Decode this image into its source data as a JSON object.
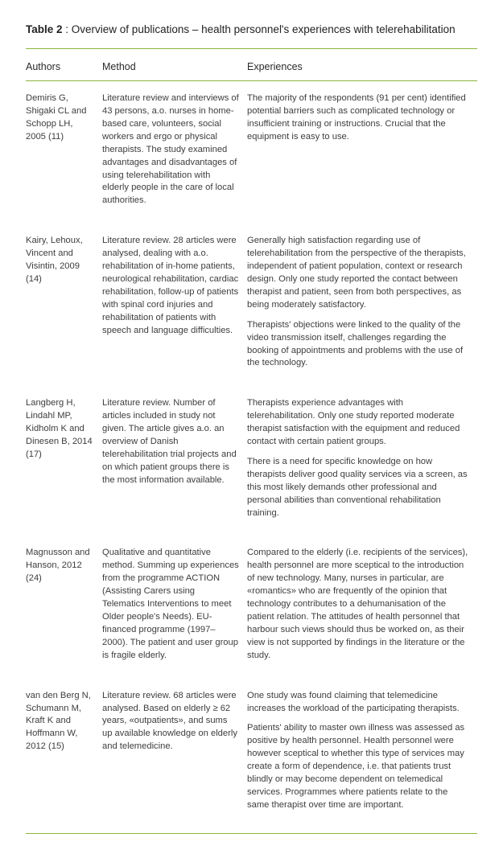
{
  "title_prefix": "Table 2",
  "title_rest": " : Overview of publications – health personnel's experiences with telerehabilitation",
  "headers": {
    "authors": "Authors",
    "method": "Method",
    "experiences": "Experiences"
  },
  "rows": [
    {
      "authors": "Demiris G, Shigaki CL and Schopp LH, 2005 (11)",
      "method": "Literature review and interviews of 43 persons, a.o. nurses in home-based care, volunteers, social workers and ergo or physical therapists.  The study examined advantages and disadvantages of using telerehabilitation with elderly people in the care of local authorities.",
      "experiences": [
        "The majority of the respondents (91 per cent) identified potential barriers such as complicated technology or insufficient training or instructions. Crucial that the equipment is easy to use."
      ]
    },
    {
      "authors": "Kairy, Lehoux, Vincent and Visintin, 2009 (14)",
      "method": "Literature review.  28 articles were analysed, dealing with a.o. rehabilitation of in-home patients, neurological rehabilitation, cardiac rehabilitation, follow-up of patients with spinal cord injuries and rehabilitation of patients with speech and language difficulties.",
      "experiences": [
        "Generally high satisfaction regarding use of telerehabilitation from the perspective of the therapists, independent of patient population, context or research design. Only one study reported the contact between therapist and patient, seen from both perspectives, as being moderately satisfactory.",
        "Therapists' objections were linked to the quality of the video transmission itself, challenges regarding the booking of appointments and problems with the use of the technology."
      ]
    },
    {
      "authors": "Langberg H, Lindahl MP, Kidholm K and Dinesen B, 2014 (17)",
      "method": "Literature review.  Number of articles included in study not given. The article gives a.o. an overview of Danish telerehabilitation trial projects and on which patient groups there is the most information available.",
      "experiences": [
        "Therapists experience advantages with telerehabilitation. Only one study reported moderate therapist satisfaction with the equipment and reduced contact with certain patient groups.",
        "There is a need for specific knowledge on how therapists deliver good quality services via a screen, as this most likely demands other professional and personal abilities than conventional rehabilitation training."
      ]
    },
    {
      "authors": "Magnusson and Hanson, 2012 (24)",
      "method": "Qualitative and quantitative method.  Summing up experiences from the programme ACTION (Assisting Carers using Telematics Interventions to meet Older people's Needs). EU-financed programme (1997–2000). The patient and user group is fragile elderly.",
      "experiences": [
        "Compared to the elderly (i.e. recipients of the services), health personnel are more sceptical to the introduction of new technology. Many, nurses in particular, are «romantics» who are frequently of the opinion that technology contributes to a dehumanisation of the patient relation. The attitudes of health personnel that harbour such views should thus be worked on, as their view is not supported by findings in the literature or the study."
      ]
    },
    {
      "authors": "van den Berg N, Schumann M, Kraft K and Hoffmann W, 2012 (15)",
      "method": "Literature review. 68 articles were analysed.  Based on elderly ≥ 62 years, «outpatients», and sums up available knowledge on elderly and telemedicine.",
      "experiences": [
        "One study was found claiming that telemedicine increases the workload of the participating therapists.",
        "Patients' ability to master own illness was assessed as positive by health personnel. Health personnel were however sceptical to whether this type of services may create a form of dependence, i.e. that patients trust blindly or may become dependent on telemedical services.  Programmes where patients relate to the same therapist over time are important."
      ]
    }
  ]
}
